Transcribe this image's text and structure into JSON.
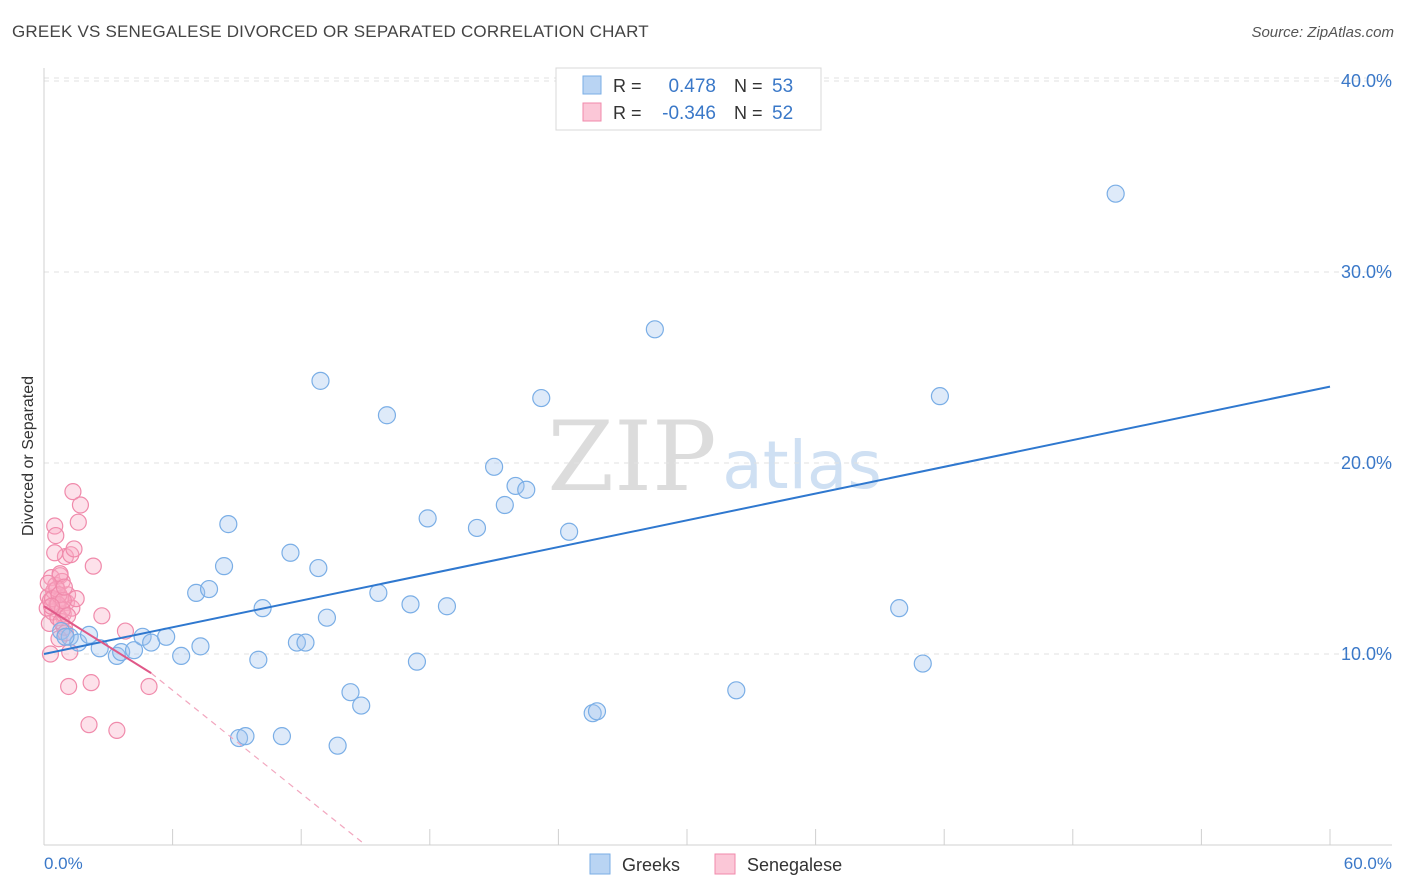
{
  "title": "GREEK VS SENEGALESE DIVORCED OR SEPARATED CORRELATION CHART",
  "source": "Source: ZipAtlas.com",
  "colors": {
    "greeks": "#7aaee6",
    "greeks_line": "#2f78cf",
    "senegalese": "#f08aab",
    "senegalese_line": "#e05888",
    "axis_label": "#3a78c8"
  },
  "chart_data": {
    "type": "scatter",
    "ylabel": "Divorced or Separated",
    "xlabel": "",
    "xlim": [
      0,
      60
    ],
    "ylim": [
      0,
      42
    ],
    "x_tick_labels": [
      "0.0%",
      "60.0%"
    ],
    "y_ticks": [
      10,
      20,
      30,
      40
    ],
    "y_tick_labels": [
      "10.0%",
      "20.0%",
      "30.0%",
      "40.0%"
    ],
    "grid": true,
    "legend": {
      "position": "top-center",
      "entries": [
        {
          "name": "Greeks",
          "r_label": "R =",
          "r_value": "0.478",
          "n_label": "N =",
          "n_value": "53"
        },
        {
          "name": "Senegalese",
          "r_label": "R =",
          "r_value": "-0.346",
          "n_label": "N =",
          "n_value": "52"
        }
      ]
    },
    "bottom_legend": [
      "Greeks",
      "Senegalese"
    ],
    "watermark": {
      "main": "ZIP",
      "sub": "atlas"
    },
    "series": [
      {
        "name": "Greeks",
        "points": [
          [
            0.8,
            11.2
          ],
          [
            1.2,
            10.9
          ],
          [
            1.6,
            10.6
          ],
          [
            2.1,
            11.0
          ],
          [
            2.6,
            10.3
          ],
          [
            3.4,
            9.9
          ],
          [
            3.6,
            10.1
          ],
          [
            4.2,
            10.2
          ],
          [
            4.6,
            10.9
          ],
          [
            5.0,
            10.6
          ],
          [
            5.7,
            10.9
          ],
          [
            6.4,
            9.9
          ],
          [
            7.1,
            13.2
          ],
          [
            7.3,
            10.4
          ],
          [
            7.7,
            13.4
          ],
          [
            8.4,
            14.6
          ],
          [
            8.6,
            16.8
          ],
          [
            9.1,
            5.6
          ],
          [
            9.4,
            5.7
          ],
          [
            10.0,
            9.7
          ],
          [
            10.2,
            12.4
          ],
          [
            11.1,
            5.7
          ],
          [
            11.5,
            15.3
          ],
          [
            11.8,
            10.6
          ],
          [
            12.2,
            10.6
          ],
          [
            12.8,
            14.5
          ],
          [
            12.9,
            24.3
          ],
          [
            13.2,
            11.9
          ],
          [
            13.7,
            5.2
          ],
          [
            14.3,
            8.0
          ],
          [
            14.8,
            7.3
          ],
          [
            15.6,
            13.2
          ],
          [
            16.0,
            22.5
          ],
          [
            17.1,
            12.6
          ],
          [
            17.4,
            9.6
          ],
          [
            17.9,
            17.1
          ],
          [
            18.8,
            12.5
          ],
          [
            20.2,
            16.6
          ],
          [
            21.0,
            19.8
          ],
          [
            21.5,
            17.8
          ],
          [
            22.0,
            18.8
          ],
          [
            22.5,
            18.6
          ],
          [
            23.2,
            23.4
          ],
          [
            24.5,
            16.4
          ],
          [
            25.6,
            6.9
          ],
          [
            25.8,
            7.0
          ],
          [
            28.5,
            27.0
          ],
          [
            32.3,
            8.1
          ],
          [
            39.9,
            12.4
          ],
          [
            41.0,
            9.5
          ],
          [
            41.8,
            23.5
          ],
          [
            50.0,
            34.1
          ],
          [
            1.0,
            10.9
          ]
        ],
        "trend": [
          [
            0,
            10.0
          ],
          [
            60,
            24.0
          ]
        ]
      },
      {
        "name": "Senegalese",
        "points": [
          [
            0.15,
            12.4
          ],
          [
            0.2,
            13.0
          ],
          [
            0.25,
            11.6
          ],
          [
            0.3,
            12.8
          ],
          [
            0.35,
            14.0
          ],
          [
            0.4,
            12.2
          ],
          [
            0.45,
            13.3
          ],
          [
            0.5,
            16.7
          ],
          [
            0.55,
            13.6
          ],
          [
            0.6,
            12.6
          ],
          [
            0.65,
            11.9
          ],
          [
            0.7,
            10.8
          ],
          [
            0.75,
            14.1
          ],
          [
            0.8,
            12.9
          ],
          [
            0.85,
            13.8
          ],
          [
            0.9,
            12.1
          ],
          [
            0.95,
            11.4
          ],
          [
            1.0,
            15.1
          ],
          [
            1.05,
            12.7
          ],
          [
            1.1,
            13.1
          ],
          [
            1.15,
            8.3
          ],
          [
            1.2,
            10.1
          ],
          [
            1.25,
            15.2
          ],
          [
            1.3,
            12.4
          ],
          [
            1.35,
            18.5
          ],
          [
            1.4,
            15.5
          ],
          [
            1.5,
            12.9
          ],
          [
            1.6,
            16.9
          ],
          [
            1.7,
            17.8
          ],
          [
            2.1,
            6.3
          ],
          [
            2.2,
            8.5
          ],
          [
            2.3,
            14.6
          ],
          [
            2.7,
            12.0
          ],
          [
            3.4,
            6.0
          ],
          [
            3.8,
            11.2
          ],
          [
            4.9,
            8.3
          ],
          [
            0.3,
            10.0
          ],
          [
            0.4,
            12.9
          ],
          [
            0.5,
            15.3
          ],
          [
            0.55,
            16.2
          ],
          [
            0.6,
            13.4
          ],
          [
            0.65,
            12.6
          ],
          [
            0.7,
            13.1
          ],
          [
            0.75,
            14.2
          ],
          [
            0.8,
            11.7
          ],
          [
            0.85,
            12.3
          ],
          [
            0.9,
            12.8
          ],
          [
            0.95,
            13.5
          ],
          [
            1.0,
            11.1
          ],
          [
            1.1,
            12.0
          ],
          [
            0.2,
            13.7
          ],
          [
            0.35,
            12.5
          ]
        ],
        "trend": [
          [
            0,
            12.5
          ],
          [
            5,
            9.0
          ]
        ],
        "trend_dashed": [
          [
            5,
            9.0
          ],
          [
            15,
            0.0
          ]
        ]
      }
    ]
  }
}
